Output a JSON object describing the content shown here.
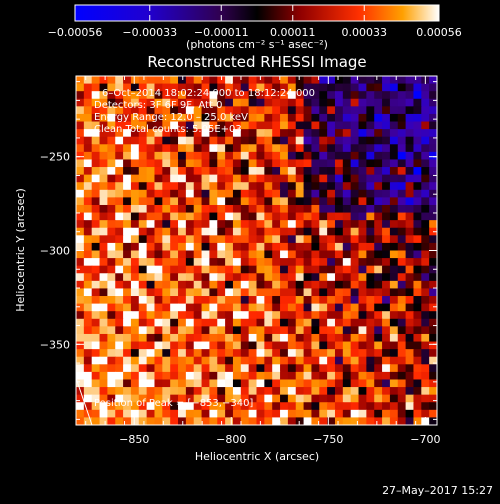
{
  "chart_data": {
    "type": "heatmap",
    "title": "Reconstructed RHESSI Image",
    "xlabel": "Heliocentric X (arcsec)",
    "ylabel": "Heliocentric Y (arcsec)",
    "xlim": [
      -880,
      -694
    ],
    "ylim": [
      -393,
      -207
    ],
    "x_ticks": [
      -850,
      -800,
      -750,
      -700
    ],
    "x_tick_labels": [
      "−850",
      "−800",
      "−750",
      "−700"
    ],
    "y_ticks": [
      -250,
      -300,
      -350
    ],
    "y_tick_labels": [
      "−250",
      "−300",
      "−350"
    ],
    "colorbar": {
      "min": -0.00056,
      "max": 0.00056,
      "ticks": [
        -0.00056,
        -0.00033,
        -0.00011,
        0.00011,
        0.00033,
        0.00056
      ],
      "tick_labels": [
        "−0.00056",
        "−0.00033",
        "−0.00011",
        "0.00011",
        "0.00033",
        "0.00056"
      ],
      "unit_label": "(photons cm⁻² s⁻¹ asec⁻²)",
      "colors": [
        "#0000ff",
        "#400080",
        "#000000",
        "#800000",
        "#ff2000",
        "#ff9000",
        "#ffffff"
      ]
    },
    "annotations": [
      "6–Oct–2014 18:02:24.000 to 18:12:24.000",
      "Detectors: 3F 6F 9F, Att 0",
      "Energy Range: 12.0 – 25.0 keV",
      "Clean     Total counts: 5.05E+03"
    ],
    "peak_label": "Position of Peak = [−853,−340]",
    "peak": [
      -853,
      -340
    ],
    "grid": false
  },
  "footer": {
    "timestamp": "27–May–2017 15:27"
  }
}
